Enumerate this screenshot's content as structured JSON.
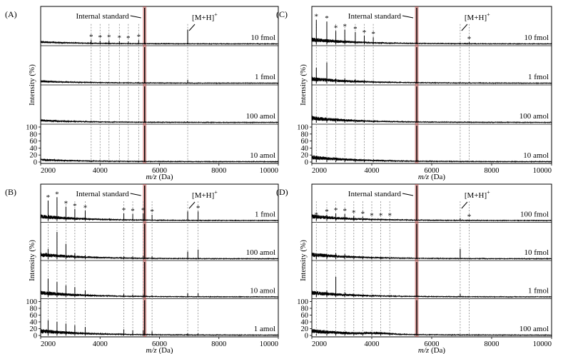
{
  "figure": {
    "xlabel_var": "m/z",
    "xlabel_unit": " (Da)",
    "ylabel": "Intensity (%)",
    "internal_standard_label": "Internal standard",
    "ion_label": "[M+H]",
    "ion_sup": "+",
    "star": "*",
    "x_ticks": [
      2000,
      4000,
      6000,
      8000,
      10000
    ],
    "y_ticks": [
      0,
      20,
      40,
      60,
      80,
      100
    ],
    "xlim": [
      2000,
      10000
    ],
    "ylim": [
      0,
      100
    ],
    "internal_standard_color": "#c0504d"
  },
  "chart_data": [
    {
      "type": "line",
      "panel": "(A)",
      "internal_standard_mz": 5500,
      "ion_mz": 6950,
      "star_mz": [
        3700,
        4000,
        4300,
        4650,
        4950,
        5300
      ],
      "traces": [
        {
          "name": "10 fmol",
          "ion": 42,
          "stars": [
            12,
            10,
            11,
            9,
            8,
            12
          ]
        },
        {
          "name": "1 fmol",
          "ion": 10,
          "stars": [
            4,
            4,
            4,
            3,
            3,
            4
          ]
        },
        {
          "name": "100 amol",
          "ion": 4,
          "stars": [
            2,
            2,
            2,
            2,
            2,
            2
          ]
        },
        {
          "name": "10 amol",
          "ion": 2,
          "stars": [
            1,
            1,
            1,
            1,
            1,
            1
          ]
        }
      ]
    },
    {
      "type": "line",
      "panel": "(C)",
      "internal_standard_mz": 5500,
      "ion_mz": 6950,
      "star_mz": [
        2150,
        2500,
        2800,
        3100,
        3450,
        3750,
        4050,
        7250
      ],
      "traces": [
        {
          "name": "10 fmol",
          "ion": 4,
          "stars": [
            70,
            65,
            38,
            42,
            35,
            25,
            20,
            6
          ]
        },
        {
          "name": "1 fmol",
          "ion": 3,
          "stars": [
            45,
            60,
            15,
            15,
            12,
            10,
            8,
            3
          ]
        },
        {
          "name": "100 amol",
          "ion": 2,
          "stars": [
            15,
            12,
            8,
            8,
            6,
            5,
            4,
            2
          ]
        },
        {
          "name": "10 amol",
          "ion": 2,
          "stars": [
            8,
            7,
            5,
            4,
            4,
            3,
            3,
            1
          ]
        }
      ]
    },
    {
      "type": "line",
      "panel": "(B)",
      "internal_standard_mz": 5500,
      "ion_mz": 6950,
      "star_mz": [
        2250,
        2550,
        2850,
        3150,
        3500,
        4800,
        5100,
        5450,
        5750,
        7300
      ],
      "traces": [
        {
          "name": "1 fmol",
          "ion": 28,
          "stars": [
            60,
            70,
            42,
            35,
            30,
            22,
            20,
            22,
            18,
            28
          ]
        },
        {
          "name": "100 amol",
          "ion": 22,
          "stars": [
            30,
            80,
            45,
            18,
            12,
            8,
            8,
            10,
            8,
            28
          ]
        },
        {
          "name": "10 amol",
          "ion": 12,
          "stars": [
            55,
            45,
            35,
            30,
            20,
            10,
            8,
            8,
            6,
            12
          ]
        },
        {
          "name": "1 amol",
          "ion": 6,
          "stars": [
            45,
            40,
            35,
            30,
            25,
            18,
            15,
            15,
            12,
            6
          ]
        }
      ]
    },
    {
      "type": "line",
      "panel": "(D)",
      "internal_standard_mz": 5500,
      "ion_mz": 6950,
      "star_mz": [
        2150,
        2500,
        2800,
        3100,
        3400,
        3700,
        4000,
        4300,
        4600,
        7250
      ],
      "traces": [
        {
          "name": "100 fmol",
          "ion": 8,
          "stars": [
            8,
            18,
            22,
            20,
            15,
            12,
            6,
            6,
            6,
            3
          ]
        },
        {
          "name": "10 fmol",
          "ion": 30,
          "stars": [
            8,
            12,
            18,
            15,
            10,
            8,
            5,
            4,
            4,
            3
          ]
        },
        {
          "name": "1 fmol",
          "ion": 10,
          "stars": [
            10,
            20,
            60,
            15,
            10,
            8,
            5,
            4,
            4,
            2
          ]
        },
        {
          "name": "100 amol",
          "ion": 2,
          "stars": [
            4,
            5,
            6,
            5,
            4,
            4,
            4,
            4,
            3,
            2
          ]
        }
      ]
    }
  ]
}
